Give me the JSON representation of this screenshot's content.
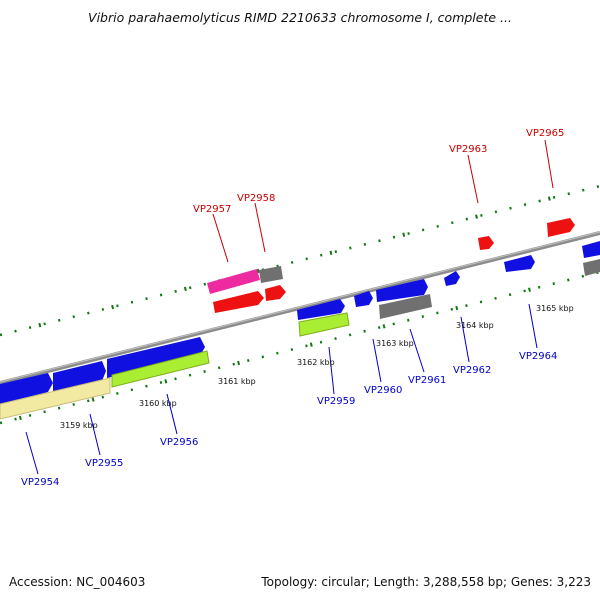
{
  "title": "Vibrio parahaemolyticus RIMD 2210633 chromosome I, complete ...",
  "footer": {
    "accession": "Accession: NC_004603",
    "summary": "Topology: circular; Length: 3,288,558 bp; Genes: 3,223"
  },
  "colors": {
    "backbone": "#8c8c8c",
    "forward_gene": "#1010e0",
    "reverse_gene": "#ee1111",
    "pseudo_gene": "#707070",
    "magenta_gene": "#ee2aa0",
    "green_gene": "#aaee33",
    "yellow_gene": "#f2eaa2",
    "tick": "#117711",
    "label_blue": "#0000cc",
    "label_red": "#cc0000"
  },
  "ticks": [
    "3159 kbp",
    "3160 kbp",
    "3161 kbp",
    "3162 kbp",
    "3163 kbp",
    "3164 kbp",
    "3165 kbp"
  ],
  "gene_labels": [
    "VP2954",
    "VP2955",
    "VP2956",
    "VP2957",
    "VP2958",
    "VP2959",
    "VP2960",
    "VP2961",
    "VP2962",
    "VP2963",
    "VP2964",
    "VP2965"
  ]
}
